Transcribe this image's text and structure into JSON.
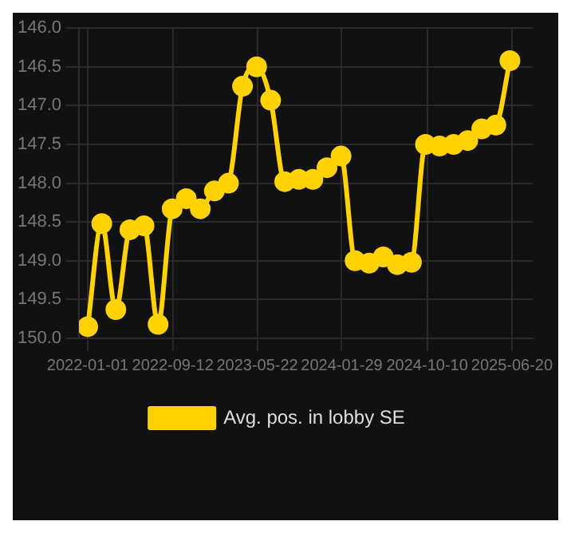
{
  "chart_data": {
    "type": "line",
    "x": [
      "2022-01-01",
      "2022-02-12",
      "2022-03-26",
      "2022-05-07",
      "2022-06-18",
      "2022-07-30",
      "2022-09-10",
      "2022-10-22",
      "2022-12-03",
      "2023-01-14",
      "2023-02-25",
      "2023-04-08",
      "2023-05-20",
      "2023-07-01",
      "2023-08-12",
      "2023-09-23",
      "2023-11-04",
      "2023-12-16",
      "2024-01-27",
      "2024-03-09",
      "2024-04-20",
      "2024-06-01",
      "2024-07-13",
      "2024-08-24",
      "2024-10-05",
      "2024-11-16",
      "2024-12-28",
      "2025-02-08",
      "2025-03-22",
      "2025-05-03",
      "2025-06-14"
    ],
    "series": [
      {
        "name": "Avg. pos. in lobby SE",
        "color": "#ffd200",
        "values": [
          149.85,
          148.52,
          149.63,
          148.6,
          148.55,
          149.82,
          148.33,
          148.2,
          148.33,
          148.1,
          148.0,
          146.75,
          146.5,
          146.93,
          147.98,
          147.95,
          147.95,
          147.8,
          147.65,
          149.0,
          149.03,
          148.95,
          149.05,
          149.02,
          147.5,
          147.52,
          147.5,
          147.45,
          147.3,
          147.25,
          146.42
        ]
      }
    ],
    "xlim": [
      "2021-12-06",
      "2025-08-20"
    ],
    "xticks": [
      "2022-01-01",
      "2022-09-12",
      "2023-05-22",
      "2024-01-29",
      "2024-10-10",
      "2025-06-20"
    ],
    "ylim": [
      150.0,
      146.0
    ],
    "yticks": [
      {
        "value": 146,
        "label": "146.0"
      },
      {
        "value": 146.5,
        "label": "146.5"
      },
      {
        "value": 147,
        "label": "147.0"
      },
      {
        "value": 147.5,
        "label": "147.5"
      },
      {
        "value": 148,
        "label": "148.0"
      },
      {
        "value": 148.5,
        "label": "148.5"
      },
      {
        "value": 149,
        "label": "149.0"
      },
      {
        "value": 149.5,
        "label": "149.5"
      },
      {
        "value": 150,
        "label": "150.0"
      }
    ],
    "grid": true,
    "legend": "bottom",
    "marker": "circle",
    "line_style": "solid"
  }
}
